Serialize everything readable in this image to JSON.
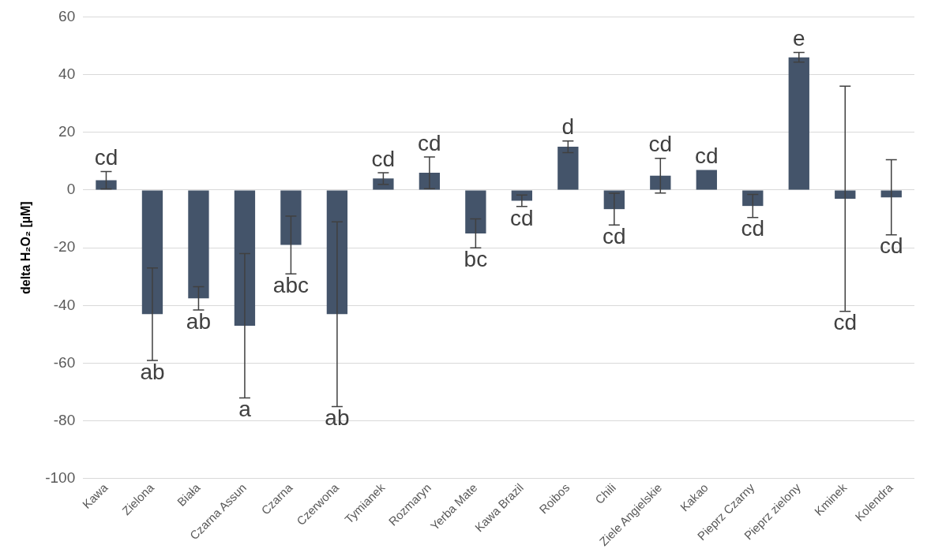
{
  "chart_data": {
    "type": "bar",
    "ylabel": "delta H₂O₂ [µM]",
    "categories": [
      "Kawa",
      "Zielona",
      "Biała",
      "Czarna Assun",
      "Czarna",
      "Czerwona",
      "Tymianek",
      "Rozmaryn",
      "Yerba Mate",
      "Kawa Brazil",
      "Roibos",
      "Chili",
      "Ziele Angielskie",
      "Kakao",
      "Pieprz Czarny",
      "Pieprz zielony",
      "Kminek",
      "Kolendra"
    ],
    "values": [
      3.4,
      -43,
      -37.5,
      -47,
      -19,
      -43,
      4,
      6,
      -15,
      -3.7,
      15,
      -6.6,
      5,
      7,
      -5.5,
      46,
      -3,
      -2.5
    ],
    "errors": [
      3,
      16,
      4,
      25,
      10,
      32,
      2,
      5.5,
      5,
      2,
      2,
      5.5,
      6,
      null,
      4,
      1.7,
      39,
      13
    ],
    "color": "#44546a",
    "ylim": [
      -100,
      60
    ],
    "yticks": [
      -100,
      -80,
      -60,
      -40,
      -20,
      0,
      20,
      40,
      60
    ],
    "grid": "y",
    "legend": false,
    "annotations": [
      {
        "text": "cd",
        "x": "Kawa",
        "y": 6.4
      },
      {
        "text": "ab",
        "x": "Zielona",
        "y": -59
      },
      {
        "text": "ab",
        "x": "Biała",
        "y": -41.5
      },
      {
        "text": "a",
        "x": "Czarna Assun",
        "y": -72
      },
      {
        "text": "abc",
        "x": "Czarna",
        "y": -29
      },
      {
        "text": "ab",
        "x": "Czerwona",
        "y": -75
      },
      {
        "text": "cd",
        "x": "Tymianek",
        "y": 6
      },
      {
        "text": "cd",
        "x": "Rozmaryn",
        "y": 11.5
      },
      {
        "text": "bc",
        "x": "Yerba Mate",
        "y": -20
      },
      {
        "text": "cd",
        "x": "Kawa Brazil",
        "y": -5.7
      },
      {
        "text": "d",
        "x": "Roibos",
        "y": 17
      },
      {
        "text": "cd",
        "x": "Chili",
        "y": -12.1
      },
      {
        "text": "cd",
        "x": "Ziele Angielskie",
        "y": 11
      },
      {
        "text": "cd",
        "x": "Kakao",
        "y": 7
      },
      {
        "text": "cd",
        "x": "Pieprz Czarny",
        "y": -9.5
      },
      {
        "text": "e",
        "x": "Pieprz zielony",
        "y": 47.7
      },
      {
        "text": "cd",
        "x": "Kminek",
        "y": -42
      },
      {
        "text": "cd",
        "x": "Kolendra",
        "y": -15.5
      }
    ]
  }
}
